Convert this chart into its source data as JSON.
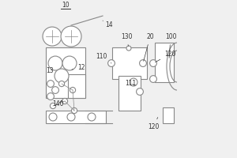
{
  "bg_color": "#f0f0f0",
  "line_color": "#888888",
  "dark_line": "#555555",
  "text_color": "#333333",
  "white": "#ffffff"
}
